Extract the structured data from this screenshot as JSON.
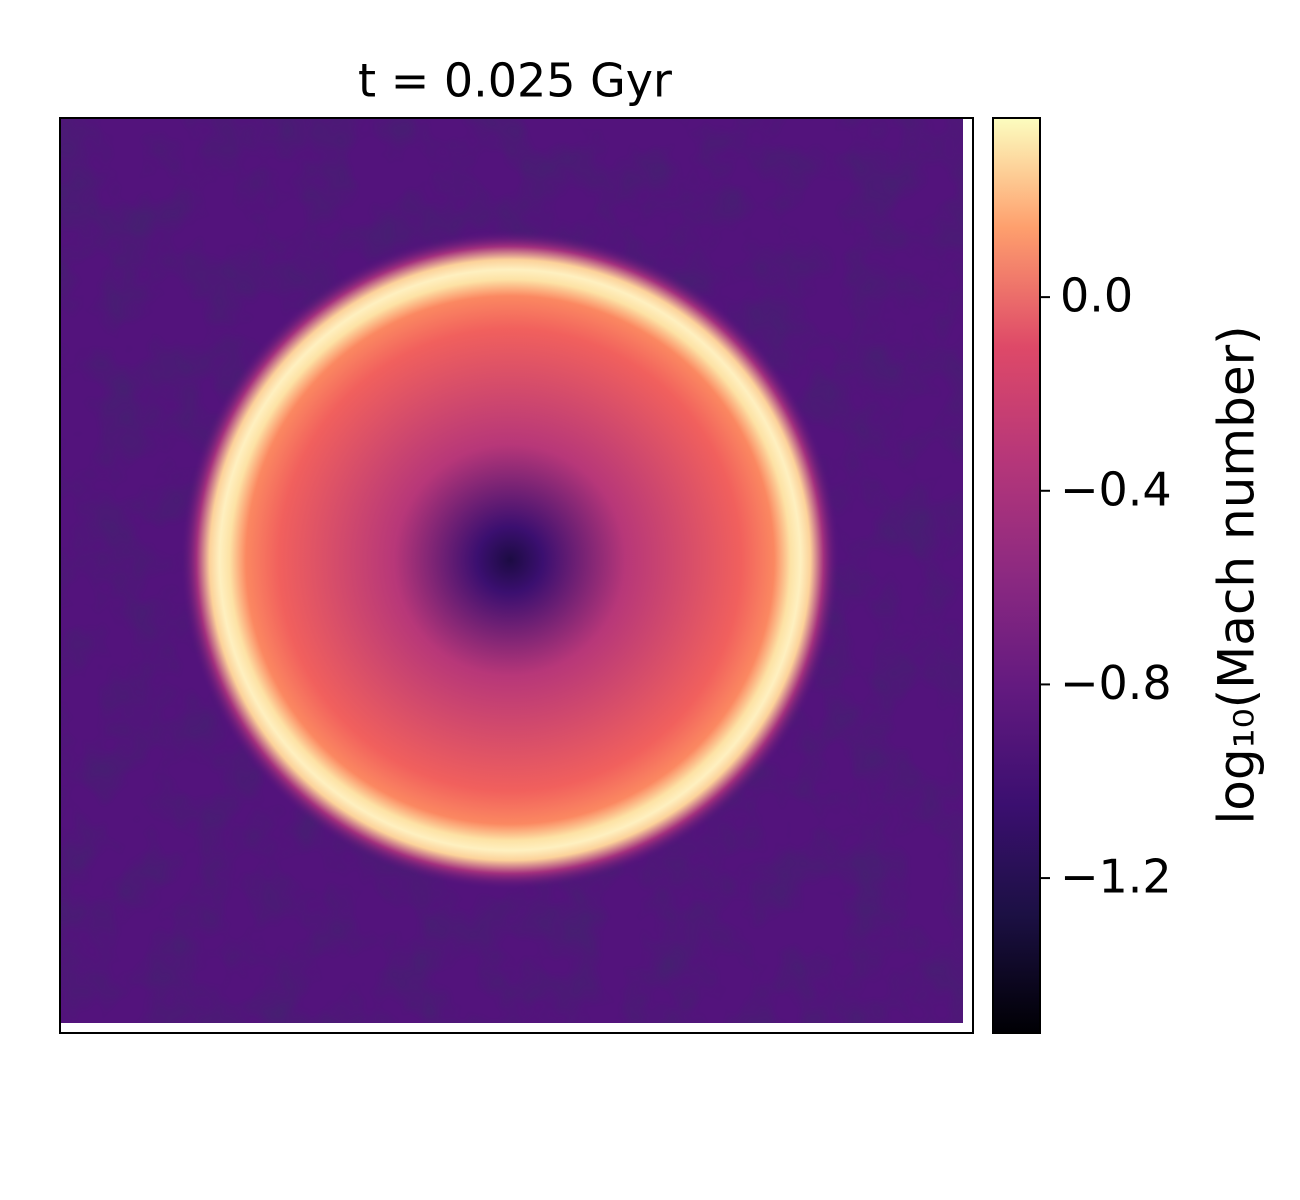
{
  "chart_data": {
    "type": "image",
    "title": "t = 0.025 Gyr",
    "colorbar_label": "log₁₀(Mach number)",
    "colormap": "magma",
    "clim": [
      -1.52,
      0.37
    ],
    "cticks": [
      {
        "value": 0,
        "label": "0.0"
      },
      {
        "value": -0.4,
        "label": "−0.4"
      },
      {
        "value": -0.8,
        "label": "−0.8"
      },
      {
        "value": -1.2,
        "label": "−1.2"
      }
    ]
  }
}
